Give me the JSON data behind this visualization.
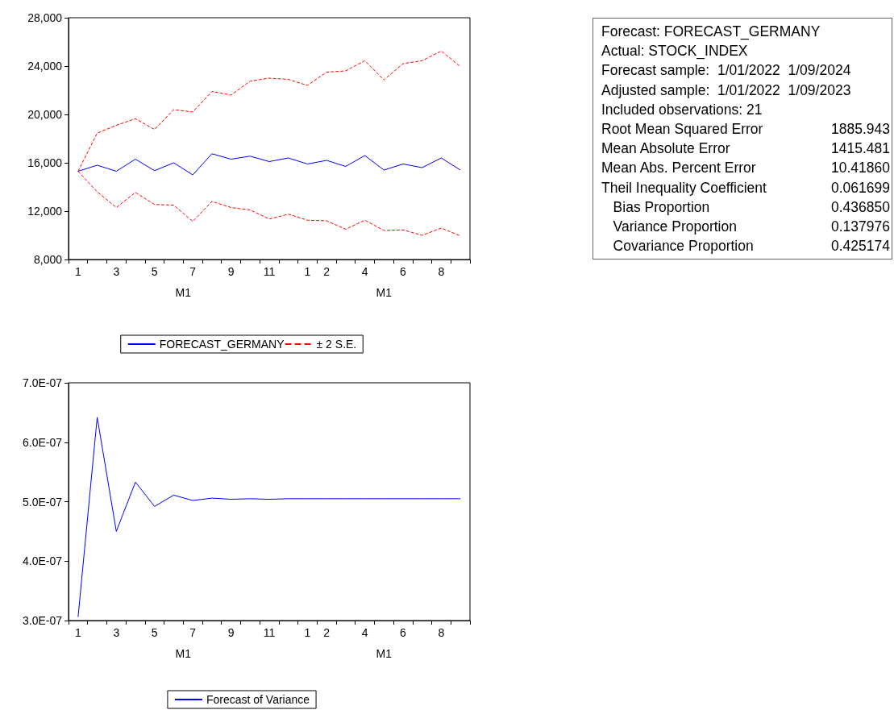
{
  "chart_data": [
    {
      "type": "line",
      "categories": [
        "1",
        null,
        "3",
        null,
        "5",
        null,
        "7",
        null,
        "9",
        null,
        "11",
        null,
        "1",
        "2",
        null,
        "4",
        null,
        "6",
        null,
        "8",
        null
      ],
      "series": [
        {
          "name": "FORECAST_GERMANY",
          "color": "#0000ff",
          "line_style": "solid",
          "values": [
            15300,
            15800,
            15300,
            16300,
            15350,
            16000,
            15000,
            16750,
            16300,
            16550,
            16100,
            16400,
            15900,
            16200,
            15700,
            16600,
            15400,
            15900,
            15600,
            16400,
            15400
          ]
        },
        {
          "name": "± 2 S.E.",
          "color": "#ff0000",
          "line_style": "dashed",
          "values": [
            15300,
            18450,
            19100,
            19650,
            18750,
            20400,
            20200,
            21900,
            21600,
            22750,
            23000,
            22900,
            22400,
            23500,
            23600,
            24450,
            22850,
            24200,
            24450,
            25250,
            23950
          ]
        },
        {
          "color": "#ff0000",
          "line_style": "dashed",
          "values": [
            15300,
            13600,
            12300,
            13550,
            12550,
            12500,
            11150,
            12800,
            12300,
            12100,
            11350,
            11750,
            11250,
            11200,
            10500,
            11250,
            10400,
            10450,
            10000,
            10600,
            9950
          ]
        }
      ],
      "ylim": [
        8000,
        28000
      ],
      "yticks": [
        {
          "value": 8000,
          "label": "8,000"
        },
        {
          "value": 12000,
          "label": "12,000"
        },
        {
          "value": 16000,
          "label": "16,000"
        },
        {
          "value": 20000,
          "label": "20,000"
        },
        {
          "value": 24000,
          "label": "24,000"
        },
        {
          "value": 28000,
          "label": "28,000"
        }
      ],
      "annotations": [
        "M1",
        "M1"
      ],
      "legend": "bottom",
      "marker": "none"
    },
    {
      "type": "other",
      "annotations": [
        "Forecast: FORECAST_GERMANY",
        "Actual: STOCK_INDEX",
        "Forecast sample:  1/01/2022  1/09/2024",
        "Adjusted sample:  1/01/2022  1/09/2023",
        "Included observations: 21"
      ],
      "categories": [
        "Root Mean Squared Error",
        "Mean Absolute Error",
        "Mean Abs. Percent Error",
        "Theil Inequality Coefficient",
        "   Bias Proportion",
        "   Variance Proportion",
        "   Covariance Proportion"
      ],
      "value_labels": [
        "1885.943",
        "1415.481",
        "10.41860",
        "0.061699",
        "0.436850",
        "0.137976",
        "0.425174"
      ]
    },
    {
      "type": "line",
      "categories": [
        "1",
        null,
        "3",
        null,
        "5",
        null,
        "7",
        null,
        "9",
        null,
        "11",
        null,
        "1",
        "2",
        null,
        "4",
        null,
        "6",
        null,
        "8",
        null
      ],
      "series": [
        {
          "name": "Forecast of Variance",
          "color": "#0000ff",
          "line_style": "solid",
          "values": [
            3.06e-07,
            6.42e-07,
            4.5e-07,
            5.33e-07,
            4.92e-07,
            5.11e-07,
            5.02e-07,
            5.06e-07,
            5.04e-07,
            5.05e-07,
            5.04e-07,
            5.05e-07,
            5.05e-07,
            5.05e-07,
            5.05e-07,
            5.05e-07,
            5.05e-07,
            5.05e-07,
            5.05e-07,
            5.05e-07,
            5.05e-07
          ]
        }
      ],
      "ylim": [
        3e-07,
        7e-07
      ],
      "yticks": [
        {
          "value": 3e-07,
          "label": "3.0E-07"
        },
        {
          "value": 4e-07,
          "label": "4.0E-07"
        },
        {
          "value": 5e-07,
          "label": "5.0E-07"
        },
        {
          "value": 6e-07,
          "label": "6.0E-07"
        },
        {
          "value": 7e-07,
          "label": "7.0E-07"
        }
      ],
      "annotations": [
        "M1",
        "M1"
      ],
      "legend": "bottom",
      "marker": "none"
    }
  ]
}
